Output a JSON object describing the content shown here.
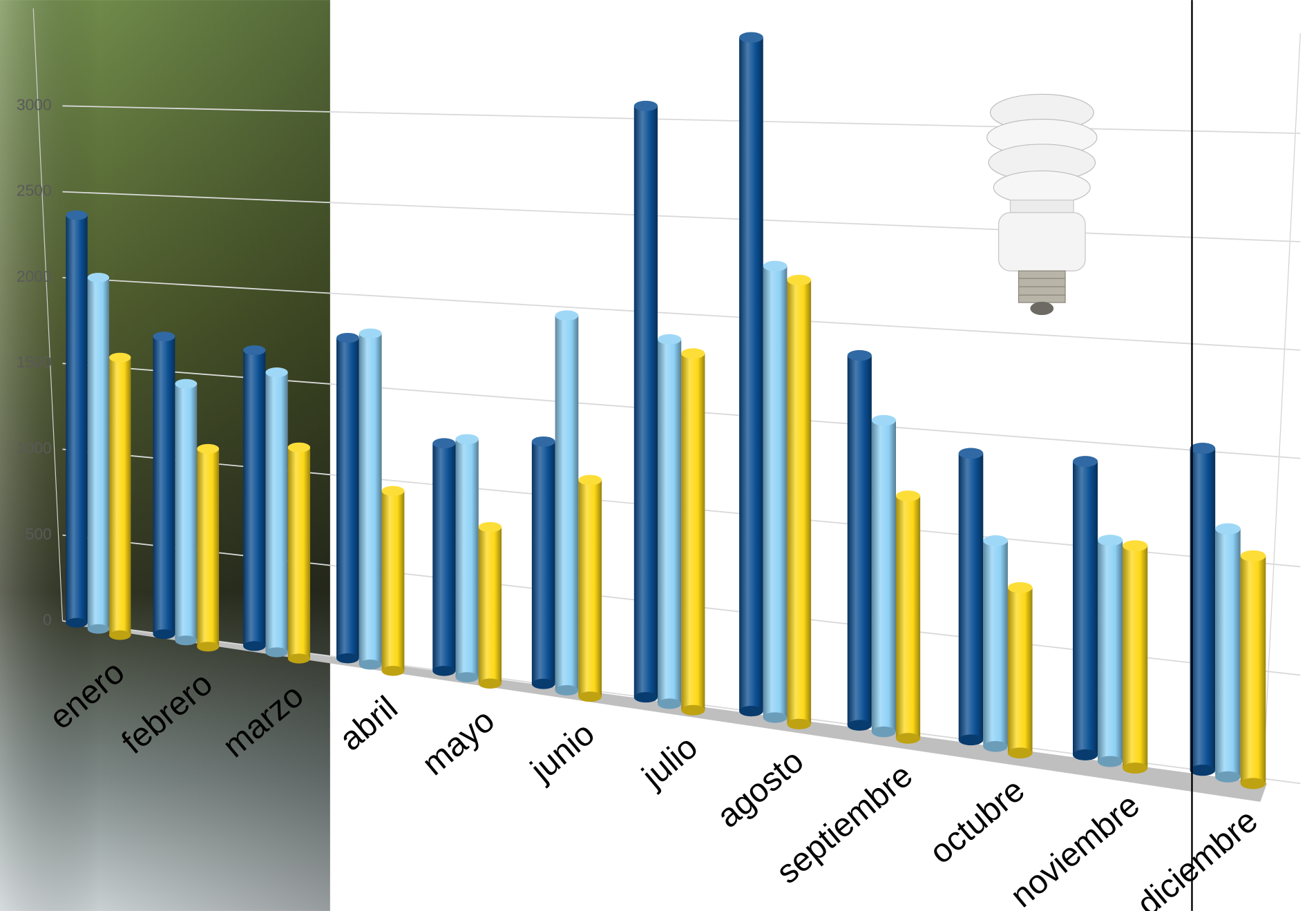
{
  "chart_data": {
    "type": "bar",
    "categories": [
      "enero",
      "febrero",
      "marzo",
      "abril",
      "mayo",
      "junio",
      "julio",
      "agosto",
      "septiembre",
      "octubre",
      "noviembre",
      "diciembre"
    ],
    "series": [
      {
        "color": "#0b4f93",
        "values": [
          2450,
          1750,
          1700,
          1800,
          1250,
          1300,
          3100,
          3450,
          1850,
          1400,
          1400,
          1500
        ]
      },
      {
        "color": "#8ed1f6",
        "values": [
          2100,
          1500,
          1600,
          1850,
          1300,
          2000,
          1900,
          2300,
          1550,
          1000,
          1050,
          1150
        ]
      },
      {
        "color": "#fdd816",
        "values": [
          1650,
          1150,
          1200,
          1000,
          850,
          1150,
          1850,
          2250,
          1200,
          800,
          1050,
          1050
        ]
      }
    ],
    "ylim": [
      0,
      3500
    ],
    "yticks": [
      0,
      500,
      1000,
      1500,
      2000,
      2500,
      3000
    ],
    "grid": true
  }
}
